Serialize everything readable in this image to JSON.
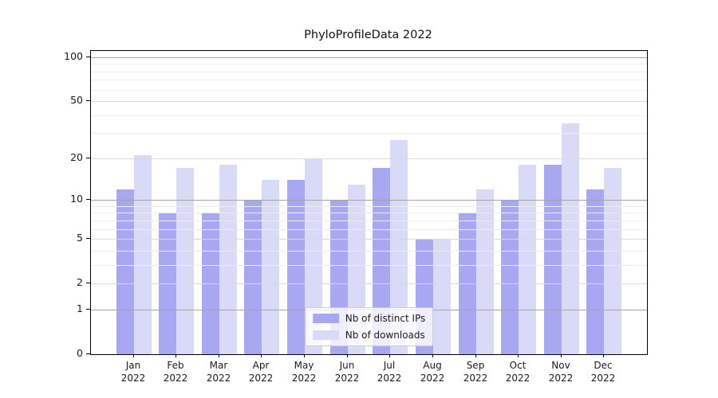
{
  "chart_data": {
    "type": "bar",
    "title": "PhyloProfileData 2022",
    "year": "2022",
    "categories": [
      "Jan",
      "Feb",
      "Mar",
      "Apr",
      "May",
      "Jun",
      "Jul",
      "Aug",
      "Sep",
      "Oct",
      "Nov",
      "Dec"
    ],
    "series": [
      {
        "name": "Nb of distinct IPs",
        "color": "#a8a8f2",
        "values": [
          12,
          8,
          8,
          10,
          14,
          10,
          17,
          5,
          8,
          10,
          18,
          12
        ]
      },
      {
        "name": "Nb of downloads",
        "color": "#d9d9f8",
        "values": [
          21,
          17,
          18,
          14,
          20,
          13,
          27,
          5,
          12,
          18,
          35,
          17
        ]
      }
    ],
    "xlabel": "",
    "ylabel": "",
    "yscale": "log1p",
    "yticks": [
      0,
      1,
      2,
      5,
      10,
      20,
      50,
      100
    ],
    "major_gridlines": [
      1,
      10,
      100
    ],
    "labeled_gridlines": [
      2,
      5,
      20,
      50
    ],
    "minor_gridlines": [
      3,
      4,
      6,
      7,
      8,
      9,
      30,
      40,
      60,
      70,
      80,
      90
    ],
    "ylim": [
      0,
      110
    ],
    "grid": true,
    "grid_over_bars": true,
    "legend_position": "lower center"
  }
}
